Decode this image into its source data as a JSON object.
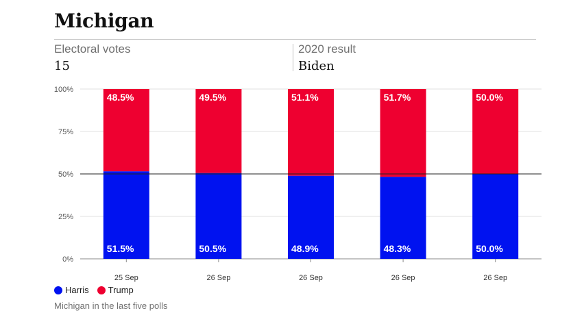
{
  "header": {
    "title": "Michigan",
    "electoral_label": "Electoral votes",
    "electoral_value": "15",
    "result_label": "2020 result",
    "result_value": "Biden"
  },
  "caption": "Michigan in the last five polls",
  "colors": {
    "harris": "#0012f0",
    "trump": "#ee0030"
  },
  "chart_data": {
    "type": "bar",
    "stacked": true,
    "categories": [
      "25 Sep",
      "26 Sep",
      "26 Sep",
      "26 Sep",
      "26 Sep"
    ],
    "series": [
      {
        "name": "Harris",
        "values": [
          51.5,
          50.5,
          48.9,
          48.3,
          50.0
        ]
      },
      {
        "name": "Trump",
        "values": [
          48.5,
          49.5,
          51.1,
          51.7,
          50.0
        ]
      }
    ],
    "data_labels": {
      "Harris": [
        "51.5%",
        "50.5%",
        "48.9%",
        "48.3%",
        "50.0%"
      ],
      "Trump": [
        "48.5%",
        "49.5%",
        "51.1%",
        "51.7%",
        "50.0%"
      ]
    },
    "ylim": [
      0,
      100
    ],
    "yticks": [
      0,
      25,
      50,
      75,
      100
    ],
    "ytick_labels": [
      "0%",
      "25%",
      "50%",
      "75%",
      "100%"
    ],
    "reference_line": 50,
    "grid": true,
    "legend": {
      "position": "bottom-left",
      "entries": [
        "Harris",
        "Trump"
      ]
    }
  }
}
